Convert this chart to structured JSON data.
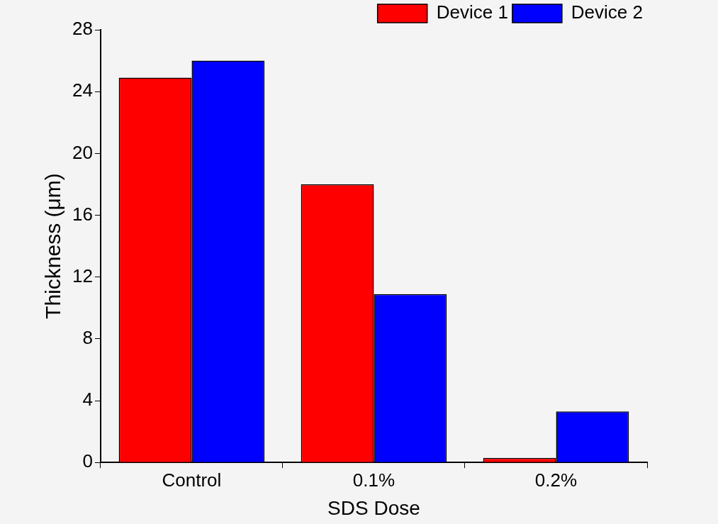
{
  "chart_data": {
    "type": "bar",
    "xlabel": "SDS Dose",
    "ylabel": "Thickness (μm)",
    "categories": [
      "Control",
      "0.1%",
      "0.2%"
    ],
    "series": [
      {
        "name": "Device 1",
        "color": "#ff0000",
        "values": [
          24.9,
          18.0,
          0.3
        ]
      },
      {
        "name": "Device 2",
        "color": "#0000ff",
        "values": [
          26.0,
          10.9,
          3.3
        ]
      }
    ],
    "ylim": [
      0,
      28
    ],
    "yticks": [
      0,
      4,
      8,
      12,
      16,
      20,
      24,
      28
    ],
    "grid": false,
    "legend": "top right"
  }
}
